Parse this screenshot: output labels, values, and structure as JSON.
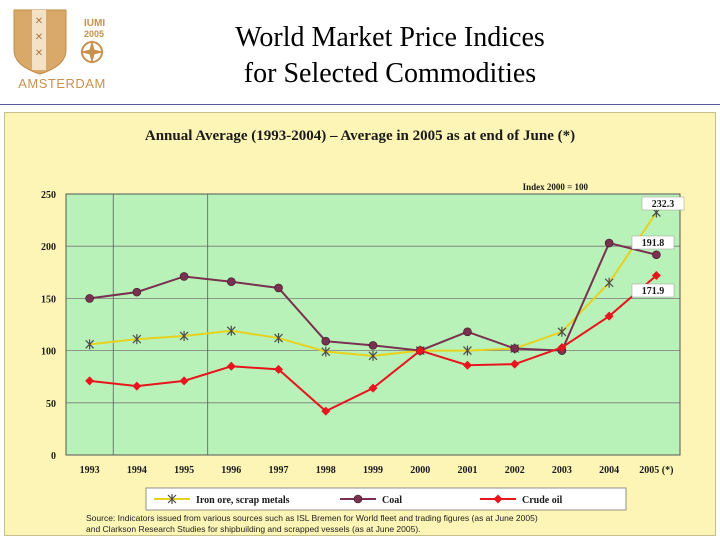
{
  "logo": {
    "line1": "IUMI",
    "line2": "2005",
    "city": "AMSTERDAM"
  },
  "title_line1": "World Market Price Indices",
  "title_line2": "for Selected Commodities",
  "chart_data": {
    "type": "line",
    "title": "Annual Average (1993-2004) – Average in 2005 as at end of June (*)",
    "index_note": "Index 2000 = 100",
    "categories": [
      "1993",
      "1994",
      "1995",
      "1996",
      "1997",
      "1998",
      "1999",
      "2000",
      "2001",
      "2002",
      "2003",
      "2004",
      "2005 (*)"
    ],
    "ylim": [
      0,
      250
    ],
    "yticks": [
      0,
      50,
      100,
      150,
      200,
      250
    ],
    "grid": true,
    "legend_position": "bottom",
    "series": [
      {
        "name": "Iron ore, scrap metals",
        "color": "#e6d21e",
        "marker": "star",
        "values": [
          106,
          111,
          114,
          119,
          112,
          99,
          95,
          100,
          100,
          102,
          118,
          165,
          232.3
        ]
      },
      {
        "name": "Coal",
        "color": "#7a3050",
        "marker": "circle",
        "values": [
          150,
          156,
          171,
          166,
          160,
          109,
          105,
          100,
          118,
          102,
          100,
          203,
          191.8
        ]
      },
      {
        "name": "Crude oil",
        "color": "#e8141e",
        "marker": "diamond",
        "values": [
          71,
          66,
          71,
          85,
          82,
          42,
          64,
          100,
          86,
          87,
          103,
          133,
          171.9
        ]
      }
    ],
    "annotations": [
      "232.3",
      "191.8",
      "171.9"
    ]
  },
  "source_line1": "Source: Indicators issued from various sources such as ISL Bremen for World fleet and trading figures (as at June 2005)",
  "source_line2": "and Clarkson Research Studies for shipbuilding and scrapped vessels (as at June 2005).",
  "colors": {
    "plot_bg": "#b8f2b8",
    "panel_bg": "#fdf5b6",
    "grid": "#7a7a7a"
  }
}
